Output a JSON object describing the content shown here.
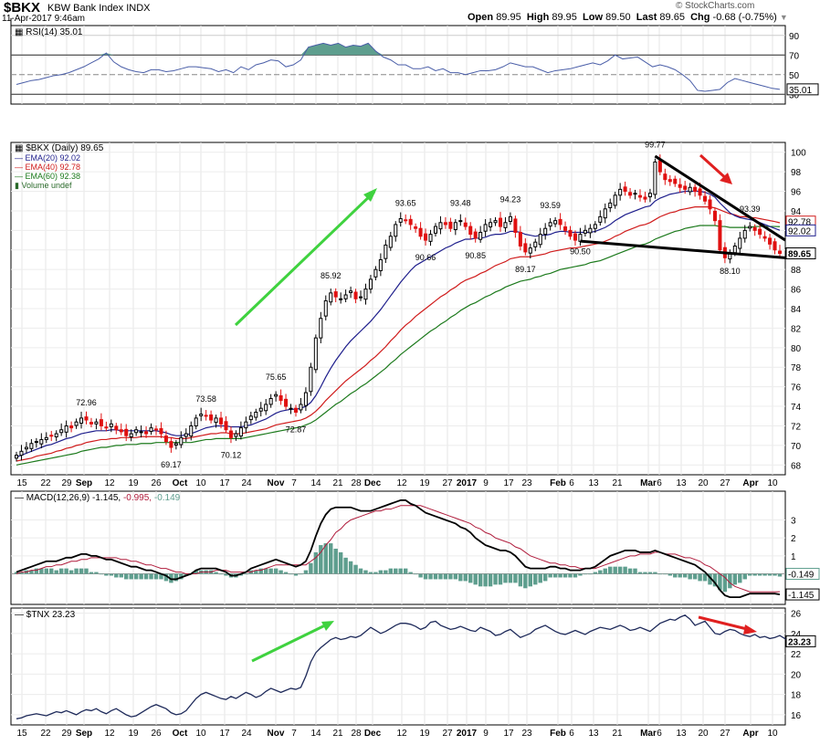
{
  "header": {
    "symbol": "$BKX",
    "name": "KBW Bank Index",
    "exchange": "INDX",
    "date": "11-Apr-2017 9:46am",
    "open_label": "Open",
    "open": "89.95",
    "high_label": "High",
    "high": "89.95",
    "low_label": "Low",
    "low": "89.50",
    "last_label": "Last",
    "last": "89.65",
    "chg_label": "Chg",
    "chg": "-0.68 (-0.75%)",
    "brand": "© StockCharts.com"
  },
  "rsi": {
    "label": "RSI(14) 35.01",
    "last": "35.01",
    "ticks": [
      30,
      50,
      70,
      90
    ],
    "values": [
      40,
      42,
      44,
      45,
      47,
      49,
      50,
      52,
      55,
      58,
      62,
      66,
      72,
      63,
      58,
      55,
      53,
      52,
      55,
      55,
      53,
      54,
      56,
      58,
      58,
      57,
      56,
      53,
      55,
      52,
      58,
      55,
      60,
      62,
      65,
      64,
      58,
      60,
      65,
      78,
      80,
      82,
      80,
      82,
      78,
      80,
      79,
      82,
      74,
      68,
      65,
      60,
      60,
      56,
      56,
      58,
      54,
      56,
      52,
      52,
      50,
      52,
      54,
      54,
      55,
      58,
      62,
      60,
      58,
      58,
      55,
      52,
      54,
      55,
      56,
      58,
      60,
      62,
      60,
      64,
      70,
      66,
      67,
      68,
      63,
      58,
      60,
      58,
      55,
      50,
      44,
      34,
      33,
      34,
      35,
      42,
      46,
      44,
      42,
      40,
      38,
      36,
      35
    ]
  },
  "price": {
    "legend": {
      "title": "$BKX (Daily) 89.65",
      "ema20": "EMA(20) 92.02",
      "ema40": "EMA(40) 92.78",
      "ema60": "EMA(60) 92.38",
      "volume": "Volume undef"
    },
    "ticks": [
      68,
      70,
      72,
      74,
      76,
      78,
      80,
      82,
      84,
      86,
      88,
      90,
      92,
      94,
      96,
      98,
      100
    ],
    "last_labels": {
      "ema40": "92.78",
      "ema20": "92.02",
      "last": "89.65"
    },
    "annotations": [
      {
        "text": "72.96",
        "i": 14
      },
      {
        "text": "69.17",
        "i": 31
      },
      {
        "text": "73.58",
        "i": 38
      },
      {
        "text": "70.12",
        "i": 43
      },
      {
        "text": "75.65",
        "i": 52
      },
      {
        "text": "72.87",
        "i": 56
      },
      {
        "text": "85.92",
        "i": 63
      },
      {
        "text": "93.65",
        "i": 78
      },
      {
        "text": "90.66",
        "i": 82
      },
      {
        "text": "93.48",
        "i": 89
      },
      {
        "text": "90.85",
        "i": 92
      },
      {
        "text": "94.23",
        "i": 99
      },
      {
        "text": "89.17",
        "i": 102
      },
      {
        "text": "93.59",
        "i": 107
      },
      {
        "text": "90.50",
        "i": 113
      },
      {
        "text": "99.77",
        "i": 128
      },
      {
        "text": "93.39",
        "i": 147
      },
      {
        "text": "88.10",
        "i": 143
      }
    ]
  },
  "macd": {
    "label": "MACD(12,26,9)",
    "macd": "-1.145",
    "signal": "-0.995",
    "hist": "-0.149",
    "ticks": [
      1,
      2,
      3
    ],
    "last_labels": {
      "hist": "-0.149",
      "macd": "-1.145"
    }
  },
  "tnx": {
    "label": "$TNX 23.23",
    "last": "23.23",
    "ticks": [
      16,
      18,
      20,
      22,
      24,
      26
    ]
  },
  "xaxis": {
    "labels": [
      {
        "t": "15",
        "x": 24
      },
      {
        "t": "22",
        "x": 50
      },
      {
        "t": "29",
        "x": 73
      },
      {
        "t": "Sep",
        "x": 92,
        "b": true
      },
      {
        "t": "12",
        "x": 120
      },
      {
        "t": "19",
        "x": 146
      },
      {
        "t": "26",
        "x": 171
      },
      {
        "t": "Oct",
        "x": 197,
        "b": true
      },
      {
        "t": "10",
        "x": 220
      },
      {
        "t": "17",
        "x": 246
      },
      {
        "t": "24",
        "x": 270
      },
      {
        "t": "Nov",
        "x": 302,
        "b": true
      },
      {
        "t": "7",
        "x": 322
      },
      {
        "t": "14",
        "x": 346
      },
      {
        "t": "21",
        "x": 370
      },
      {
        "t": "28",
        "x": 390
      },
      {
        "t": "Dec",
        "x": 408,
        "b": true
      },
      {
        "t": "12",
        "x": 440
      },
      {
        "t": "19",
        "x": 465
      },
      {
        "t": "27",
        "x": 490
      },
      {
        "t": "2017",
        "x": 511,
        "b": true
      },
      {
        "t": "9",
        "x": 532
      },
      {
        "t": "17",
        "x": 557
      },
      {
        "t": "23",
        "x": 577
      },
      {
        "t": "Feb",
        "x": 611,
        "b": true
      },
      {
        "t": "6",
        "x": 626
      },
      {
        "t": "13",
        "x": 650
      },
      {
        "t": "21",
        "x": 676
      },
      {
        "t": "Mar",
        "x": 710,
        "b": true
      },
      {
        "t": "6",
        "x": 722
      },
      {
        "t": "13",
        "x": 746
      },
      {
        "t": "20",
        "x": 770
      },
      {
        "t": "27",
        "x": 794
      },
      {
        "t": "Apr",
        "x": 822,
        "b": true
      },
      {
        "t": "10",
        "x": 846
      }
    ]
  },
  "colors": {
    "ema20": "#1e1e8c",
    "ema40": "#d01c1c",
    "ema60": "#1c7a1c",
    "up": "#000000",
    "down": "#e01010",
    "hist": "#5e9e8e",
    "rsi_fill": "#5e9e8e",
    "arrow_green": "#3fd23f",
    "arrow_red": "#e02020",
    "signal": "#b01c3c"
  },
  "chart_data": {
    "type": "candlestick",
    "title": "$BKX (Daily) 89.65",
    "ylim": [
      67,
      101
    ],
    "series": [
      {
        "name": "EMA(20) 92.02"
      },
      {
        "name": "EMA(40) 92.78"
      },
      {
        "name": "EMA(60) 92.38"
      }
    ],
    "close": [
      69.0,
      69.4,
      69.8,
      70.2,
      70.4,
      70.6,
      70.8,
      71.0,
      71.2,
      71.6,
      72.0,
      71.8,
      72.4,
      72.8,
      72.6,
      72.2,
      72.4,
      72.0,
      71.8,
      72.2,
      71.6,
      71.4,
      71.0,
      71.2,
      71.6,
      71.4,
      71.2,
      71.8,
      71.6,
      71.2,
      70.4,
      69.8,
      70.2,
      70.8,
      71.2,
      72.0,
      72.8,
      73.2,
      73.0,
      72.6,
      72.8,
      72.2,
      71.6,
      70.8,
      71.2,
      71.8,
      72.4,
      73.0,
      73.4,
      73.8,
      74.2,
      74.8,
      75.2,
      74.6,
      74.0,
      73.8,
      73.4,
      74.2,
      75.4,
      78.0,
      81.0,
      83.0,
      84.8,
      85.6,
      85.2,
      85.0,
      85.4,
      85.8,
      85.0,
      85.2,
      86.0,
      87.0,
      88.0,
      89.0,
      90.5,
      91.4,
      92.6,
      93.2,
      93.0,
      92.6,
      92.2,
      91.4,
      91.0,
      91.6,
      92.4,
      92.8,
      92.6,
      92.2,
      92.8,
      93.0,
      92.4,
      91.6,
      91.2,
      91.8,
      92.6,
      92.8,
      93.0,
      92.4,
      92.8,
      93.4,
      91.8,
      90.4,
      89.8,
      90.2,
      90.8,
      91.6,
      92.2,
      92.8,
      93.0,
      92.6,
      92.0,
      91.4,
      91.0,
      91.6,
      92.0,
      92.2,
      92.6,
      93.4,
      94.2,
      94.8,
      95.6,
      96.2,
      96.0,
      95.6,
      95.8,
      95.4,
      95.2,
      95.8,
      99.0,
      98.0,
      97.2,
      97.0,
      96.8,
      96.4,
      96.2,
      96.4,
      96.0,
      95.6,
      95.0,
      94.2,
      93.0,
      90.0,
      89.2,
      89.6,
      90.4,
      91.2,
      92.0,
      92.4,
      92.0,
      91.6,
      91.2,
      90.6,
      90.0,
      89.65
    ],
    "ema20": [
      68.8,
      69.0,
      69.2,
      69.4,
      69.6,
      69.8,
      70.0,
      70.1,
      70.3,
      70.5,
      70.7,
      70.8,
      71.0,
      71.2,
      71.3,
      71.4,
      71.5,
      71.5,
      71.5,
      71.6,
      71.6,
      71.5,
      71.5,
      71.5,
      71.5,
      71.5,
      71.5,
      71.5,
      71.5,
      71.4,
      71.3,
      71.1,
      71.0,
      71.0,
      71.1,
      71.2,
      71.4,
      71.6,
      71.8,
      71.9,
      72.0,
      72.0,
      72.0,
      71.9,
      71.9,
      71.9,
      72.0,
      72.1,
      72.3,
      72.5,
      72.7,
      73.0,
      73.3,
      73.5,
      73.6,
      73.7,
      73.7,
      73.8,
      74.0,
      74.4,
      75.1,
      76.0,
      77.0,
      77.9,
      78.7,
      79.4,
      80.1,
      80.7,
      81.2,
      81.7,
      82.2,
      82.7,
      83.3,
      83.9,
      84.6,
      85.3,
      86.0,
      86.7,
      87.3,
      87.9,
      88.4,
      88.7,
      89.0,
      89.3,
      89.6,
      89.9,
      90.2,
      90.4,
      90.7,
      90.9,
      91.1,
      91.1,
      91.2,
      91.2,
      91.3,
      91.5,
      91.6,
      91.6,
      91.7,
      91.9,
      91.9,
      91.8,
      91.6,
      91.5,
      91.4,
      91.5,
      91.5,
      91.6,
      91.8,
      91.9,
      91.9,
      91.8,
      91.8,
      91.8,
      91.8,
      91.8,
      91.9,
      92.1,
      92.3,
      92.6,
      93.0,
      93.3,
      93.6,
      93.8,
      94.0,
      94.2,
      94.4,
      94.5,
      95.0,
      95.3,
      95.5,
      95.7,
      95.8,
      95.9,
      96.0,
      96.0,
      96.0,
      96.0,
      95.9,
      95.7,
      95.4,
      94.8,
      94.3,
      93.8,
      93.5,
      93.3,
      93.2,
      93.1,
      93.0,
      92.8,
      92.6,
      92.4,
      92.2,
      92.02
    ],
    "ema40": [
      68.4,
      68.5,
      68.6,
      68.7,
      68.9,
      69.0,
      69.1,
      69.2,
      69.4,
      69.5,
      69.7,
      69.8,
      70.0,
      70.1,
      70.3,
      70.4,
      70.5,
      70.6,
      70.6,
      70.7,
      70.7,
      70.8,
      70.8,
      70.8,
      70.8,
      70.9,
      70.9,
      70.9,
      70.9,
      70.9,
      70.8,
      70.8,
      70.7,
      70.7,
      70.7,
      70.8,
      70.9,
      71.0,
      71.1,
      71.2,
      71.2,
      71.3,
      71.3,
      71.2,
      71.2,
      71.2,
      71.3,
      71.4,
      71.5,
      71.6,
      71.7,
      71.9,
      72.1,
      72.2,
      72.3,
      72.4,
      72.5,
      72.6,
      72.8,
      73.1,
      73.5,
      74.0,
      74.6,
      75.1,
      75.6,
      76.1,
      76.6,
      77.0,
      77.4,
      77.8,
      78.2,
      78.7,
      79.1,
      79.6,
      80.1,
      80.7,
      81.2,
      81.8,
      82.3,
      82.7,
      83.2,
      83.6,
      84.0,
      84.4,
      84.8,
      85.2,
      85.5,
      85.9,
      86.2,
      86.6,
      86.9,
      87.1,
      87.3,
      87.6,
      87.8,
      88.1,
      88.4,
      88.6,
      88.8,
      89.1,
      89.2,
      89.3,
      89.3,
      89.3,
      89.4,
      89.5,
      89.6,
      89.8,
      89.9,
      90.0,
      90.1,
      90.2,
      90.2,
      90.3,
      90.4,
      90.5,
      90.6,
      90.7,
      90.9,
      91.1,
      91.4,
      91.6,
      91.9,
      92.1,
      92.3,
      92.5,
      92.6,
      92.8,
      93.1,
      93.4,
      93.6,
      93.8,
      93.9,
      94.1,
      94.2,
      94.3,
      94.4,
      94.4,
      94.4,
      94.4,
      94.3,
      94.1,
      93.9,
      93.7,
      93.6,
      93.4,
      93.4,
      93.3,
      93.3,
      93.2,
      93.1,
      93.0,
      92.9,
      92.78
    ],
    "ema60": [
      68.0,
      68.1,
      68.2,
      68.3,
      68.4,
      68.5,
      68.6,
      68.7,
      68.8,
      68.9,
      69.0,
      69.1,
      69.2,
      69.4,
      69.5,
      69.6,
      69.7,
      69.8,
      69.8,
      69.9,
      70.0,
      70.0,
      70.1,
      70.1,
      70.1,
      70.2,
      70.2,
      70.2,
      70.3,
      70.3,
      70.3,
      70.3,
      70.3,
      70.3,
      70.3,
      70.3,
      70.4,
      70.5,
      70.6,
      70.6,
      70.7,
      70.7,
      70.7,
      70.7,
      70.7,
      70.7,
      70.8,
      70.9,
      71.0,
      71.1,
      71.2,
      71.3,
      71.4,
      71.5,
      71.6,
      71.7,
      71.8,
      71.9,
      72.1,
      72.3,
      72.6,
      73.0,
      73.4,
      73.8,
      74.2,
      74.5,
      74.9,
      75.3,
      75.6,
      76.0,
      76.3,
      76.7,
      77.1,
      77.5,
      77.9,
      78.4,
      78.8,
      79.3,
      79.7,
      80.1,
      80.5,
      80.9,
      81.3,
      81.7,
      82.0,
      82.4,
      82.7,
      83.1,
      83.4,
      83.8,
      84.1,
      84.4,
      84.6,
      84.9,
      85.2,
      85.4,
      85.7,
      85.9,
      86.2,
      86.4,
      86.6,
      86.8,
      86.9,
      87.0,
      87.2,
      87.3,
      87.5,
      87.6,
      87.8,
      88.0,
      88.1,
      88.2,
      88.3,
      88.4,
      88.5,
      88.7,
      88.8,
      88.9,
      89.1,
      89.3,
      89.5,
      89.7,
      89.9,
      90.1,
      90.3,
      90.5,
      90.6,
      90.8,
      91.1,
      91.3,
      91.5,
      91.7,
      91.9,
      92.0,
      92.2,
      92.3,
      92.4,
      92.5,
      92.5,
      92.5,
      92.5,
      92.4,
      92.4,
      92.3,
      92.3,
      92.3,
      92.3,
      92.3,
      92.4,
      92.4,
      92.4,
      92.4,
      92.4,
      92.38
    ],
    "macd": [
      0.1,
      0.2,
      0.3,
      0.4,
      0.5,
      0.6,
      0.7,
      0.7,
      0.7,
      0.8,
      0.9,
      0.9,
      1.0,
      1.1,
      1.1,
      1.0,
      1.0,
      0.9,
      0.8,
      0.8,
      0.7,
      0.6,
      0.5,
      0.4,
      0.4,
      0.3,
      0.2,
      0.2,
      0.1,
      0.0,
      -0.1,
      -0.3,
      -0.3,
      -0.2,
      -0.1,
      0.0,
      0.2,
      0.3,
      0.3,
      0.3,
      0.3,
      0.2,
      0.1,
      -0.1,
      -0.1,
      0.0,
      0.1,
      0.3,
      0.4,
      0.5,
      0.6,
      0.7,
      0.8,
      0.7,
      0.6,
      0.5,
      0.4,
      0.5,
      0.7,
      1.3,
      2.1,
      2.8,
      3.3,
      3.6,
      3.7,
      3.7,
      3.7,
      3.7,
      3.6,
      3.5,
      3.5,
      3.5,
      3.6,
      3.7,
      3.8,
      3.9,
      4.0,
      4.1,
      4.1,
      3.9,
      3.8,
      3.6,
      3.4,
      3.3,
      3.2,
      3.1,
      3.0,
      2.9,
      2.8,
      2.6,
      2.5,
      2.3,
      2.0,
      1.8,
      1.6,
      1.5,
      1.4,
      1.3,
      1.3,
      1.2,
      1.0,
      0.7,
      0.4,
      0.3,
      0.3,
      0.3,
      0.3,
      0.4,
      0.4,
      0.3,
      0.3,
      0.2,
      0.2,
      0.2,
      0.3,
      0.3,
      0.4,
      0.6,
      0.8,
      1.0,
      1.1,
      1.2,
      1.3,
      1.3,
      1.3,
      1.2,
      1.2,
      1.2,
      1.3,
      1.2,
      1.1,
      1.0,
      0.9,
      0.8,
      0.7,
      0.6,
      0.5,
      0.3,
      0.1,
      -0.2,
      -0.5,
      -0.9,
      -1.2,
      -1.3,
      -1.3,
      -1.3,
      -1.2,
      -1.1,
      -1.1,
      -1.1,
      -1.1,
      -1.1,
      -1.1,
      -1.145
    ],
    "signal": [
      0.0,
      0.1,
      0.1,
      0.2,
      0.2,
      0.3,
      0.4,
      0.4,
      0.5,
      0.5,
      0.6,
      0.7,
      0.7,
      0.8,
      0.8,
      0.9,
      0.9,
      0.9,
      0.9,
      0.9,
      0.9,
      0.8,
      0.8,
      0.7,
      0.7,
      0.6,
      0.5,
      0.5,
      0.4,
      0.3,
      0.3,
      0.2,
      0.1,
      0.1,
      0.0,
      0.0,
      0.0,
      0.1,
      0.1,
      0.1,
      0.2,
      0.2,
      0.2,
      0.1,
      0.1,
      0.1,
      0.1,
      0.1,
      0.2,
      0.2,
      0.3,
      0.4,
      0.5,
      0.5,
      0.5,
      0.5,
      0.5,
      0.5,
      0.5,
      0.7,
      0.9,
      1.2,
      1.6,
      1.9,
      2.3,
      2.5,
      2.8,
      3.0,
      3.1,
      3.2,
      3.3,
      3.4,
      3.5,
      3.5,
      3.6,
      3.6,
      3.7,
      3.8,
      3.8,
      3.8,
      3.8,
      3.8,
      3.7,
      3.6,
      3.5,
      3.4,
      3.3,
      3.2,
      3.1,
      3.0,
      2.9,
      2.8,
      2.6,
      2.5,
      2.3,
      2.2,
      2.0,
      1.9,
      1.8,
      1.7,
      1.5,
      1.4,
      1.2,
      1.0,
      0.9,
      0.8,
      0.7,
      0.6,
      0.6,
      0.5,
      0.5,
      0.4,
      0.4,
      0.3,
      0.3,
      0.3,
      0.3,
      0.4,
      0.5,
      0.6,
      0.7,
      0.8,
      0.9,
      1.0,
      1.0,
      1.1,
      1.1,
      1.1,
      1.2,
      1.2,
      1.1,
      1.1,
      1.1,
      1.0,
      0.9,
      0.9,
      0.8,
      0.7,
      0.5,
      0.4,
      0.2,
      0.0,
      -0.2,
      -0.5,
      -0.7,
      -0.8,
      -0.9,
      -1.0,
      -1.0,
      -1.0,
      -1.0,
      -1.0,
      -1.0,
      -0.995
    ],
    "tnx": [
      15.6,
      15.7,
      15.9,
      16.0,
      16.1,
      16.0,
      15.9,
      16.1,
      16.3,
      16.2,
      16.4,
      16.2,
      16.0,
      16.3,
      16.5,
      16.4,
      16.6,
      16.3,
      16.1,
      16.4,
      16.6,
      16.3,
      16.0,
      15.8,
      15.9,
      16.2,
      16.5,
      16.8,
      17.0,
      16.8,
      16.6,
      16.2,
      16.0,
      16.1,
      16.4,
      17.0,
      17.6,
      18.0,
      18.2,
      18.0,
      17.8,
      17.6,
      17.5,
      17.8,
      17.6,
      17.9,
      18.2,
      18.0,
      17.7,
      17.9,
      18.3,
      18.6,
      18.4,
      18.2,
      18.4,
      18.6,
      18.5,
      18.7,
      19.8,
      21.2,
      22.1,
      22.6,
      23.0,
      23.4,
      23.6,
      23.4,
      23.5,
      23.7,
      23.6,
      23.8,
      24.2,
      24.6,
      24.3,
      24.0,
      24.2,
      24.5,
      24.8,
      25.0,
      25.0,
      24.9,
      24.7,
      24.4,
      24.6,
      25.1,
      25.2,
      24.8,
      24.6,
      24.4,
      24.5,
      24.7,
      24.5,
      24.3,
      24.2,
      24.6,
      24.4,
      24.2,
      23.8,
      23.9,
      24.2,
      24.4,
      24.0,
      23.6,
      23.8,
      24.0,
      24.4,
      24.6,
      24.8,
      24.5,
      24.2,
      24.0,
      23.9,
      24.1,
      24.3,
      24.1,
      23.9,
      24.2,
      24.4,
      24.6,
      24.5,
      24.4,
      24.6,
      24.8,
      24.6,
      24.3,
      24.4,
      24.6,
      24.4,
      24.2,
      24.6,
      25.0,
      25.2,
      25.4,
      25.3,
      25.6,
      25.8,
      25.4,
      24.8,
      25.0,
      25.2,
      24.6,
      24.0,
      23.9,
      24.2,
      24.4,
      24.3,
      24.0,
      23.8,
      23.7,
      23.9,
      23.6,
      23.7,
      23.5,
      23.6,
      23.8,
      23.5,
      23.23
    ],
    "notes": "Daily candlesticks of $BKX with EMA 20/40/60 overlays; RSI(14), MACD(12,26,9) and $TNX subpanels."
  }
}
